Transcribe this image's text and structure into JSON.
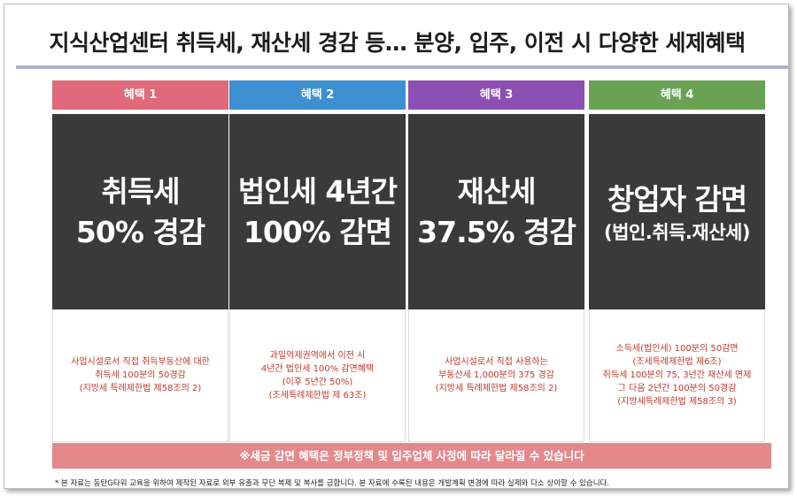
{
  "title": "지식산업센터 취득세, 재산세 경감 등… 분양, 입주, 이전 시 다양한 세제혜택",
  "colors": {
    "benefit1": "#e06a7a",
    "benefit2": "#3c90d0",
    "benefit3": "#8e4fb5",
    "benefit4": "#69a253",
    "panel": "#3a3a3a",
    "desc_text": "#c0392b",
    "notice_bg": "#e3898c",
    "rule": "#aab4c8"
  },
  "benefits": [
    {
      "header": "혜택 1",
      "big_lines": [
        "취득세",
        "50% 경감"
      ],
      "desc_lines": [
        "사업시설로서 직접 취득부동산에 대한",
        "취득세 100분의 50경감",
        "(지방세 특례제한법 제58조의 2)"
      ]
    },
    {
      "header": "혜택 2",
      "big_lines": [
        "법인세 4년간",
        "100% 감면"
      ],
      "desc_lines": [
        "과밀억제권역에서 이전 시",
        "4년간 법인세 100% 감면혜택",
        "(이후 5년간 50%)",
        "(조세특례제한법 제 63조)"
      ]
    },
    {
      "header": "혜택 3",
      "big_lines": [
        "재산세",
        "37.5% 경감"
      ],
      "desc_lines": [
        "사업시설로서 직접 사용하는",
        "부동산세 1,000분의 375 경감",
        "(지방세 특례제한법 제58조의 2)"
      ]
    },
    {
      "header": "혜택 4",
      "big_lines": [
        "창업자 감면"
      ],
      "sub_line": "(법인.취득.재산세)",
      "desc_lines": [
        "소득세(법인세) 100분의 50감면",
        "(조세특례제한법 제6조)",
        "취득세 100분의 75, 3년간 재산세 면제",
        "그 다음 2년간 100분의 50경감",
        "(지방세특례제한법 제58조의 3)"
      ]
    }
  ],
  "notice": "※세금 감면 혜택은 정부정책 및 입주업체 사정에 따라 달라질 수 있습니다",
  "footnote": "* 본 자료는 동탄G타워 교육을 위하여 제작된 자료로 외부 유출과 무단 복제 및 복사를 금합니다. 본 자료에 수록된 내용은 개발계획 변경에 따라 실제와 다소 상이할 수 있습니다."
}
